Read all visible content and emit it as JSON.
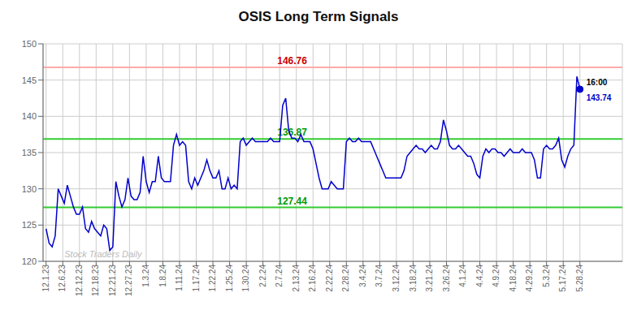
{
  "chart_data": {
    "type": "line",
    "title": "OSIS Long Term Signals",
    "watermark": "Stock Traders Daily",
    "color": "#0000cc",
    "grid": true,
    "x": [
      0,
      1,
      2,
      3,
      4,
      5,
      6,
      7,
      8,
      9,
      10,
      11,
      12,
      13,
      14,
      15,
      16,
      17,
      18,
      19,
      20,
      21,
      22,
      23,
      24,
      25,
      26,
      27,
      28,
      29,
      30,
      31,
      32,
      33,
      34,
      35,
      36,
      37,
      38,
      39,
      40,
      41,
      42,
      43,
      44,
      45,
      46,
      47,
      48,
      49,
      50,
      51,
      52,
      53,
      54,
      55,
      56,
      57,
      58,
      59,
      60,
      61,
      62,
      63,
      64,
      65,
      66,
      67,
      68,
      69,
      70,
      71,
      72,
      73,
      74,
      75,
      76,
      77,
      78,
      79,
      80,
      81,
      82,
      83,
      84,
      85,
      86,
      87,
      88,
      89,
      90,
      91,
      92,
      93,
      94,
      95,
      96,
      97,
      98,
      99,
      100,
      101,
      102,
      103,
      104,
      105,
      106,
      107,
      108,
      109,
      110,
      111,
      112,
      113,
      114,
      115,
      116,
      117,
      118,
      119,
      120,
      121,
      122,
      123,
      124,
      125,
      126,
      127,
      128,
      129,
      130,
      131,
      132,
      133,
      134,
      135,
      136,
      137,
      138,
      139,
      140,
      141,
      142,
      143,
      144,
      145,
      146,
      147,
      148,
      149,
      150,
      151,
      152,
      153,
      154,
      155,
      156,
      157,
      158,
      159,
      160,
      161,
      162,
      163,
      164,
      165,
      166,
      167,
      168,
      169,
      170,
      171,
      172,
      173,
      174,
      175,
      176
    ],
    "values": [
      124.5,
      122.5,
      122.0,
      123.5,
      130.0,
      129.0,
      128.0,
      130.5,
      129.0,
      127.5,
      126.5,
      126.5,
      127.5,
      124.5,
      124.0,
      125.5,
      124.5,
      124.0,
      123.5,
      125.0,
      124.5,
      121.5,
      122.0,
      131.0,
      129.0,
      127.5,
      128.5,
      131.5,
      129.0,
      128.5,
      128.5,
      129.5,
      134.5,
      131.0,
      129.5,
      131.0,
      131.0,
      134.5,
      131.5,
      131.0,
      131.0,
      131.0,
      136.0,
      137.5,
      136.0,
      136.5,
      136.0,
      131.0,
      130.0,
      131.5,
      130.5,
      131.5,
      132.5,
      134.0,
      132.5,
      131.5,
      131.5,
      132.5,
      130.0,
      130.0,
      131.5,
      130.0,
      130.5,
      130.0,
      136.5,
      137.0,
      136.0,
      136.5,
      137.0,
      136.5,
      136.5,
      136.5,
      136.5,
      136.5,
      137.0,
      136.5,
      136.5,
      136.5,
      141.5,
      142.5,
      138.0,
      137.0,
      137.0,
      136.5,
      137.5,
      136.5,
      136.5,
      136.5,
      135.5,
      133.5,
      131.5,
      130.0,
      130.0,
      130.0,
      131.0,
      130.5,
      130.0,
      130.0,
      130.0,
      136.5,
      137.0,
      136.5,
      136.5,
      137.0,
      136.5,
      136.5,
      136.5,
      136.5,
      135.5,
      134.5,
      133.5,
      132.5,
      131.5,
      131.5,
      131.5,
      131.5,
      131.5,
      131.5,
      132.5,
      134.5,
      135.0,
      135.5,
      136.0,
      135.5,
      135.5,
      135.0,
      135.5,
      136.0,
      135.5,
      135.5,
      136.5,
      139.5,
      138.0,
      136.0,
      135.5,
      135.5,
      136.0,
      135.5,
      135.0,
      134.5,
      134.5,
      133.5,
      132.0,
      131.5,
      134.5,
      135.5,
      135.0,
      135.5,
      135.5,
      135.0,
      135.0,
      134.5,
      135.0,
      135.5,
      135.0,
      135.0,
      135.0,
      135.5,
      135.0,
      135.0,
      135.0,
      134.0,
      131.5,
      131.5,
      135.5,
      136.0,
      135.5,
      135.5,
      136.0,
      137.0,
      134.0,
      133.0,
      134.5,
      135.5,
      136.0,
      145.5,
      143.74
    ],
    "xlim": [
      -1,
      190
    ],
    "xticks": [
      {
        "value": 0,
        "label": "12.1.23"
      },
      {
        "value": 5.5,
        "label": "12.6.23"
      },
      {
        "value": 11,
        "label": "12.12.23"
      },
      {
        "value": 16.5,
        "label": "12.18.23"
      },
      {
        "value": 22,
        "label": "12.21.23"
      },
      {
        "value": 27.5,
        "label": "12.27.23"
      },
      {
        "value": 33,
        "label": "1.3.24"
      },
      {
        "value": 38.5,
        "label": "1.8.24"
      },
      {
        "value": 44,
        "label": "1.11.24"
      },
      {
        "value": 49.5,
        "label": "1.17.24"
      },
      {
        "value": 55,
        "label": "1.22.24"
      },
      {
        "value": 60.5,
        "label": "1.25.24"
      },
      {
        "value": 66,
        "label": "1.30.24"
      },
      {
        "value": 71.5,
        "label": "2.2.24"
      },
      {
        "value": 77,
        "label": "2.7.24"
      },
      {
        "value": 82.5,
        "label": "2.13.24"
      },
      {
        "value": 88,
        "label": "2.16.24"
      },
      {
        "value": 93.5,
        "label": "2.22.24"
      },
      {
        "value": 99,
        "label": "2.28.24"
      },
      {
        "value": 104.5,
        "label": "3.4.24"
      },
      {
        "value": 110,
        "label": "3.7.24"
      },
      {
        "value": 115.5,
        "label": "3.12.24"
      },
      {
        "value": 121,
        "label": "3.18.24"
      },
      {
        "value": 126.5,
        "label": "3.21.24"
      },
      {
        "value": 132,
        "label": "3.26.24"
      },
      {
        "value": 137.5,
        "label": "4.1.24"
      },
      {
        "value": 143,
        "label": "4.4.24"
      },
      {
        "value": 148.5,
        "label": "4.9.24"
      },
      {
        "value": 154,
        "label": "4.18.24"
      },
      {
        "value": 159.5,
        "label": "4.29.24"
      },
      {
        "value": 165,
        "label": "5.3.24"
      },
      {
        "value": 170.5,
        "label": "5.17.24"
      },
      {
        "value": 176,
        "label": "5.28.24"
      }
    ],
    "ylim": [
      120,
      150
    ],
    "yticks": [
      120,
      125,
      130,
      135,
      140,
      145,
      150
    ],
    "reference_lines": [
      {
        "value": 146.76,
        "label": "146.76",
        "color": "#ffaaaa",
        "label_color": "#cc0000"
      },
      {
        "value": 136.87,
        "label": "136.87",
        "color": "#33cc33",
        "label_color": "#009900"
      },
      {
        "value": 127.44,
        "label": "127.44",
        "color": "#33cc33",
        "label_color": "#009900"
      }
    ],
    "last_point_labels": {
      "time": "16:00",
      "price": "143.74"
    }
  }
}
